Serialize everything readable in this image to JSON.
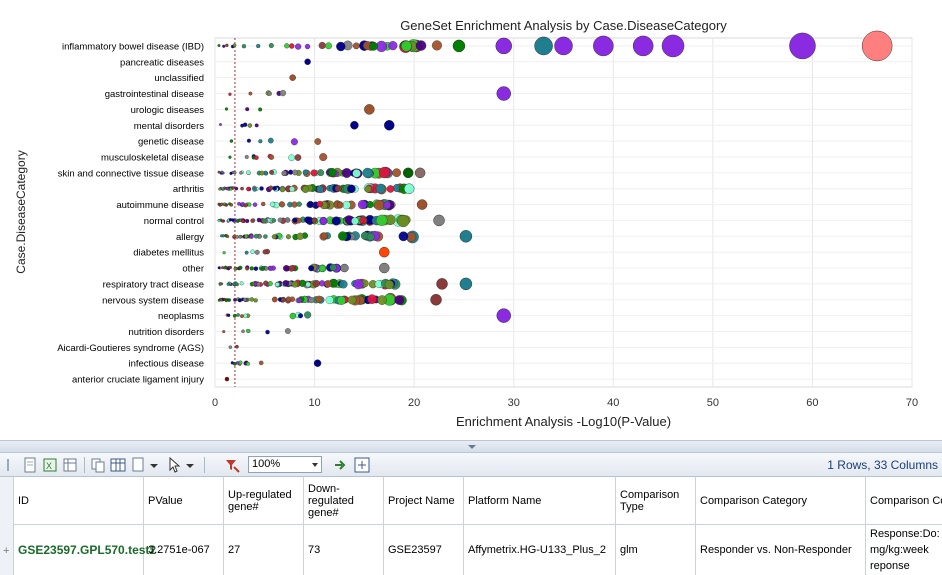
{
  "chart_data": {
    "type": "scatter",
    "title": "GeneSet Enrichment Analysis by Case.DiseaseCategory",
    "xlabel": "Enrichment Analysis -Log10(P-Value)",
    "ylabel": "Case.DiseaseCategory",
    "xlim": [
      0,
      70
    ],
    "xticks": [
      0,
      10,
      20,
      30,
      40,
      50,
      60,
      70
    ],
    "threshold_line_x": 2,
    "grid": true,
    "categories": [
      "inflammatory bowel disease (IBD)",
      "pancreatic diseases",
      "unclassified",
      "gastrointestinal disease",
      "urologic diseases",
      "mental disorders",
      "genetic disease",
      "musculoskeletal disease",
      "skin and connective tissue disease",
      "arthritis",
      "autoimmune disease",
      "normal control",
      "allergy",
      "diabetes mellitus",
      "other",
      "respiratory tract disease",
      "nervous system disease",
      "neoplasms",
      "nutrition disorders",
      "Aicardi-Goutieres syndrome (AGS)",
      "infectious disease",
      "anterior cruciate ligament injury"
    ],
    "highlight_points": [
      {
        "category": "inflammatory bowel disease (IBD)",
        "x": 66.5,
        "size": 15,
        "color": "#ff7f7f"
      },
      {
        "category": "inflammatory bowel disease (IBD)",
        "x": 59,
        "size": 13,
        "color": "#8a2be2"
      },
      {
        "category": "inflammatory bowel disease (IBD)",
        "x": 46,
        "size": 11,
        "color": "#8a2be2"
      },
      {
        "category": "inflammatory bowel disease (IBD)",
        "x": 43,
        "size": 10,
        "color": "#8a2be2"
      },
      {
        "category": "inflammatory bowel disease (IBD)",
        "x": 39,
        "size": 10,
        "color": "#8a2be2"
      },
      {
        "category": "inflammatory bowel disease (IBD)",
        "x": 35,
        "size": 9,
        "color": "#8a2be2"
      },
      {
        "category": "inflammatory bowel disease (IBD)",
        "x": 33,
        "size": 9,
        "color": "#1f7f8f"
      },
      {
        "category": "inflammatory bowel disease (IBD)",
        "x": 29,
        "size": 8,
        "color": "#8a2be2"
      },
      {
        "category": "inflammatory bowel disease (IBD)",
        "x": 24.5,
        "size": 6,
        "color": "#008000"
      },
      {
        "category": "gastrointestinal disease",
        "x": 29,
        "size": 7,
        "color": "#8a2be2"
      },
      {
        "category": "neoplasms",
        "x": 29,
        "size": 7,
        "color": "#8a2be2"
      },
      {
        "category": "allergy",
        "x": 25.2,
        "size": 6,
        "color": "#1f7f8f"
      },
      {
        "category": "respiratory tract disease",
        "x": 25.2,
        "size": 6,
        "color": "#1f7f8f"
      },
      {
        "category": "normal control",
        "x": 22.5,
        "size": 5.5,
        "color": "#808080"
      },
      {
        "category": "nervous system disease",
        "x": 22.2,
        "size": 5.5,
        "color": "#8b3a3a"
      },
      {
        "category": "respiratory tract disease",
        "x": 22.8,
        "size": 5.5,
        "color": "#8b3a3a"
      },
      {
        "category": "skin and connective tissue disease",
        "x": 19.4,
        "size": 5,
        "color": "#006400"
      },
      {
        "category": "skin and connective tissue disease",
        "x": 20.6,
        "size": 5,
        "color": "#8b6a6a"
      },
      {
        "category": "arthritis",
        "x": 19.5,
        "size": 5,
        "color": "#7fffd4"
      },
      {
        "category": "autoimmune disease",
        "x": 20.8,
        "size": 5,
        "color": "#a0522d"
      },
      {
        "category": "diabetes mellitus",
        "x": 17,
        "size": 5,
        "color": "#ff4500"
      },
      {
        "category": "urologic diseases",
        "x": 15.5,
        "size": 5,
        "color": "#a0522d"
      },
      {
        "category": "mental disorders",
        "x": 17.5,
        "size": 5,
        "color": "#00008b"
      },
      {
        "category": "mental disorders",
        "x": 14,
        "size": 4,
        "color": "#00008b"
      },
      {
        "category": "other",
        "x": 17,
        "size": 5,
        "color": "#808080"
      },
      {
        "category": "other",
        "x": 13,
        "size": 4,
        "color": "#808080"
      },
      {
        "category": "infectious disease",
        "x": 10.3,
        "size": 3.5,
        "color": "#00008b"
      },
      {
        "category": "pancreatic diseases",
        "x": 9.3,
        "size": 3,
        "color": "#00008b"
      },
      {
        "category": "unclassified",
        "x": 7.8,
        "size": 3,
        "color": "#a0522d"
      },
      {
        "category": "anterior cruciate ligament injury",
        "x": 1.2,
        "size": 2,
        "color": "#8b0000"
      }
    ],
    "series_colors": [
      "#00008b",
      "#8a2be2",
      "#1f7f8f",
      "#008000",
      "#32cd32",
      "#8b3a3a",
      "#808080",
      "#2e8b57",
      "#a0522d",
      "#4b0082",
      "#7fffd4",
      "#6b8e23",
      "#dc143c"
    ]
  },
  "toolbar": {
    "zoom_value": "100%",
    "rows_info": "1 Rows, 33 Columns"
  },
  "table": {
    "columns": [
      "ID",
      "PValue",
      "Up-regulated gene#",
      "Down-regulated gene#",
      "Project Name",
      "Platform Name",
      "Comparison Type",
      "Comparison Category",
      "Comparison Co"
    ],
    "rows": [
      [
        "GSE23597.GPL570.test2",
        "3.2751e-067",
        "27",
        "73",
        "GSE23597",
        "Affymetrix.HG-U133_Plus_2",
        "glm",
        "Responder vs. Non-Responder",
        "Response:Do: mg/kg:week reponse"
      ]
    ]
  }
}
